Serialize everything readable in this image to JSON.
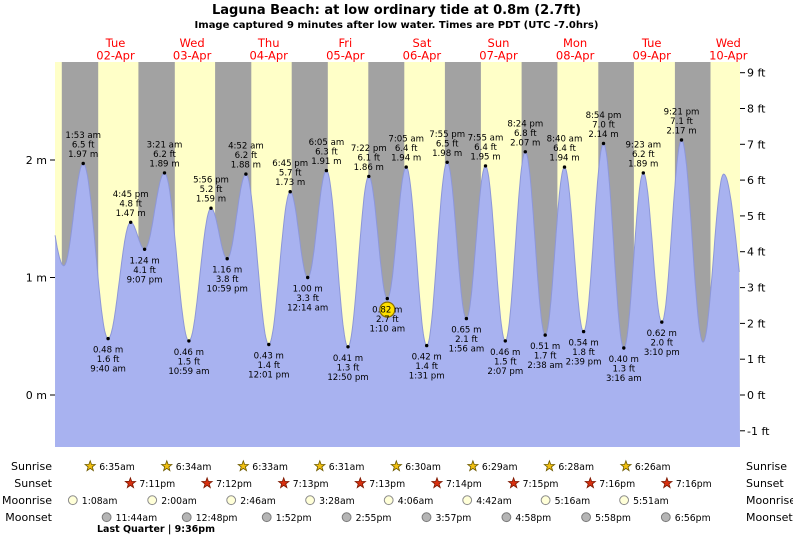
{
  "title": "Laguna Beach: at low  ordinary tide at 0.8m (2.7ft)",
  "subtitle": "Image captured 9 minutes after low water. Times are PDT (UTC -7.0hrs)",
  "days": [
    {
      "name": "Tue",
      "date": "02-Apr"
    },
    {
      "name": "Wed",
      "date": "03-Apr"
    },
    {
      "name": "Thu",
      "date": "04-Apr"
    },
    {
      "name": "Fri",
      "date": "05-Apr"
    },
    {
      "name": "Sat",
      "date": "06-Apr"
    },
    {
      "name": "Sun",
      "date": "07-Apr"
    },
    {
      "name": "Mon",
      "date": "08-Apr"
    },
    {
      "name": "Tue",
      "date": "09-Apr"
    },
    {
      "name": "Wed",
      "date": "10-Apr"
    }
  ],
  "axes": {
    "left": [
      {
        "label": "2 m",
        "m": 2
      },
      {
        "label": "1 m",
        "m": 1
      },
      {
        "label": "0 m",
        "m": 0
      }
    ],
    "right": [
      {
        "label": "9 ft",
        "ft": 9
      },
      {
        "label": "8 ft",
        "ft": 8
      },
      {
        "label": "7 ft",
        "ft": 7
      },
      {
        "label": "6 ft",
        "ft": 6
      },
      {
        "label": "5 ft",
        "ft": 5
      },
      {
        "label": "4 ft",
        "ft": 4
      },
      {
        "label": "3 ft",
        "ft": 3
      },
      {
        "label": "2 ft",
        "ft": 2
      },
      {
        "label": "1 ft",
        "ft": 1
      },
      {
        "label": "0 ft",
        "ft": 0
      },
      {
        "label": "-1 ft",
        "ft": -1
      }
    ]
  },
  "chart_data": {
    "type": "area",
    "series_name": "tide height",
    "x_range_labels": [
      "02-Apr",
      "10-Apr"
    ],
    "y_left_unit": "m",
    "y_right_unit": "ft",
    "ylim_ft": [
      -1,
      9
    ],
    "band_legend": {
      "yellow": "daylight",
      "gray": "night"
    },
    "events": [
      {
        "kind": "high",
        "day": 0,
        "time": "1:53 am",
        "ft": "6.5 ft",
        "m": "1.97 m"
      },
      {
        "kind": "low",
        "day": 0,
        "time": "9:40 am",
        "ft": "1.6 ft",
        "m": "0.48 m"
      },
      {
        "kind": "high",
        "day": 0,
        "time": "4:45 pm",
        "ft": "4.8 ft",
        "m": "1.47 m"
      },
      {
        "kind": "low",
        "day": 0,
        "time": "9:07 pm",
        "ft": "4.1 ft",
        "m": "1.24 m"
      },
      {
        "kind": "high",
        "day": 1,
        "time": "3:21 am",
        "ft": "6.2 ft",
        "m": "1.89 m"
      },
      {
        "kind": "low",
        "day": 1,
        "time": "10:59 am",
        "ft": "1.5 ft",
        "m": "0.46 m"
      },
      {
        "kind": "high",
        "day": 1,
        "time": "5:56 pm",
        "ft": "5.2 ft",
        "m": "1.59 m"
      },
      {
        "kind": "low",
        "day": 1,
        "time": "10:59 pm",
        "ft": "3.8 ft",
        "m": "1.16 m"
      },
      {
        "kind": "high",
        "day": 2,
        "time": "4:52 am",
        "ft": "6.2 ft",
        "m": "1.88 m"
      },
      {
        "kind": "low",
        "day": 2,
        "time": "12:01 pm",
        "ft": "1.4 ft",
        "m": "0.43 m"
      },
      {
        "kind": "high",
        "day": 2,
        "time": "6:45 pm",
        "ft": "5.7 ft",
        "m": "1.73 m"
      },
      {
        "kind": "low",
        "day": 3,
        "time": "12:14 am",
        "ft": "3.3 ft",
        "m": "1.00 m"
      },
      {
        "kind": "high",
        "day": 3,
        "time": "6:05 am",
        "ft": "6.3 ft",
        "m": "1.91 m"
      },
      {
        "kind": "low",
        "day": 3,
        "time": "12:50 pm",
        "ft": "1.3 ft",
        "m": "0.41 m"
      },
      {
        "kind": "high",
        "day": 3,
        "time": "7:22 pm",
        "ft": "6.1 ft",
        "m": "1.86 m"
      },
      {
        "kind": "low",
        "day": 4,
        "time": "1:10 am",
        "ft": "2.7 ft",
        "m": "0.82 m",
        "marker": true
      },
      {
        "kind": "high",
        "day": 4,
        "time": "7:05 am",
        "ft": "6.4 ft",
        "m": "1.94 m"
      },
      {
        "kind": "low",
        "day": 4,
        "time": "1:31 pm",
        "ft": "1.4 ft",
        "m": "0.42 m"
      },
      {
        "kind": "high",
        "day": 4,
        "time": "7:55 pm",
        "ft": "6.5 ft",
        "m": "1.98 m"
      },
      {
        "kind": "low",
        "day": 5,
        "time": "1:56 am",
        "ft": "2.1 ft",
        "m": "0.65 m"
      },
      {
        "kind": "high",
        "day": 5,
        "time": "7:55 am",
        "ft": "6.4 ft",
        "m": "1.95 m"
      },
      {
        "kind": "low",
        "day": 5,
        "time": "2:07 pm",
        "ft": "1.5 ft",
        "m": "0.46 m"
      },
      {
        "kind": "high",
        "day": 5,
        "time": "8:24 pm",
        "ft": "6.8 ft",
        "m": "2.07 m"
      },
      {
        "kind": "low",
        "day": 6,
        "time": "2:38 am",
        "ft": "1.7 ft",
        "m": "0.51 m"
      },
      {
        "kind": "high",
        "day": 6,
        "time": "8:40 am",
        "ft": "6.4 ft",
        "m": "1.94 m"
      },
      {
        "kind": "low",
        "day": 6,
        "time": "2:39 pm",
        "ft": "1.8 ft",
        "m": "0.54 m"
      },
      {
        "kind": "high",
        "day": 6,
        "time": "8:54 pm",
        "ft": "7.0 ft",
        "m": "2.14 m"
      },
      {
        "kind": "low",
        "day": 7,
        "time": "3:16 am",
        "ft": "1.3 ft",
        "m": "0.40 m"
      },
      {
        "kind": "high",
        "day": 7,
        "time": "9:23 am",
        "ft": "6.2 ft",
        "m": "1.89 m"
      },
      {
        "kind": "low",
        "day": 7,
        "time": "3:10 pm",
        "ft": "2.0 ft",
        "m": "0.62 m"
      },
      {
        "kind": "high",
        "day": 7,
        "time": "9:21 pm",
        "ft": "7.1 ft",
        "m": "2.17 m"
      }
    ]
  },
  "astro": {
    "rows": [
      {
        "label": "Sunrise",
        "icon": "sunrise-star",
        "times": [
          "6:35am",
          "6:34am",
          "6:33am",
          "6:31am",
          "6:30am",
          "6:29am",
          "6:28am",
          "6:26am"
        ]
      },
      {
        "label": "Sunset",
        "icon": "sunset-star",
        "times": [
          "7:11pm",
          "7:12pm",
          "7:13pm",
          "7:13pm",
          "7:14pm",
          "7:15pm",
          "7:16pm",
          "7:16pm"
        ]
      },
      {
        "label": "Moonrise",
        "icon": "moonrise-circle",
        "times": [
          "1:08am",
          "2:00am",
          "2:46am",
          "3:28am",
          "4:06am",
          "4:42am",
          "5:16am",
          "5:51am"
        ]
      },
      {
        "label": "Moonset",
        "icon": "moonset-circle",
        "times": [
          "11:44am",
          "12:48pm",
          "1:52pm",
          "2:55pm",
          "3:57pm",
          "4:58pm",
          "5:58pm",
          "6:56pm"
        ]
      }
    ],
    "moon_phase": "Last Quarter | 9:36pm"
  },
  "colors": {
    "night_band": "#a2a2a2",
    "day_band": "#ffffc8",
    "tide_fill": "#a8b2f0",
    "tide_edge": "#8d97d8",
    "day_label": "#ff0000",
    "sunrise_star": "#f2c011",
    "sunset_star": "#d83010",
    "moonrise_dot": "#ffffd8",
    "moonset_dot": "#b5b5b5",
    "marker": "#ffe000"
  }
}
